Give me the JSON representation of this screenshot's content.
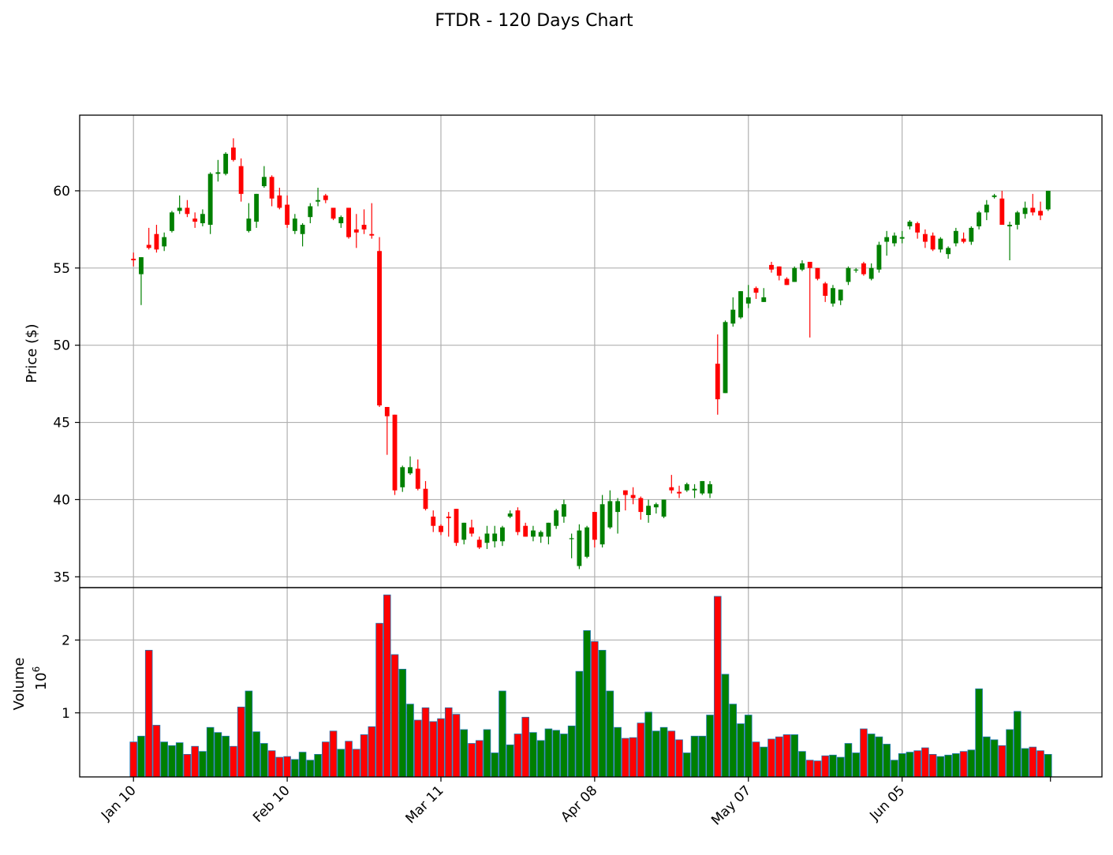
{
  "chart_data": {
    "type": "candlestick",
    "title": "FTDR - 120 Days Chart",
    "price_panel": {
      "ylabel": "Price ($)",
      "ylim": [
        34.3,
        64.9
      ],
      "yticks": [
        35,
        40,
        45,
        50,
        55,
        60
      ]
    },
    "volume_panel": {
      "ylabel": "Volume",
      "multiplier_label": "10",
      "multiplier_exponent": "6",
      "ylim": [
        0.12,
        2.72
      ],
      "yticks": [
        1,
        2
      ]
    },
    "x_ticks": [
      {
        "label": "Jan 10",
        "index": 0
      },
      {
        "label": "Feb 10",
        "index": 20
      },
      {
        "label": "Mar 11",
        "index": 40
      },
      {
        "label": "Apr 08",
        "index": 60
      },
      {
        "label": "May 07",
        "index": 80
      },
      {
        "label": "Jun 05",
        "index": 100
      }
    ],
    "x_range": [
      -7,
      126
    ],
    "grid": true,
    "colors": {
      "up": "#008000",
      "down": "#ff0000",
      "volume_edge": "#1f77b4"
    },
    "candles": [
      [
        55.6,
        56.0,
        55.1,
        55.5,
        0.6
      ],
      [
        54.6,
        55.7,
        52.6,
        55.7,
        0.68
      ],
      [
        56.5,
        57.6,
        56.2,
        56.3,
        1.86
      ],
      [
        57.2,
        57.8,
        56.0,
        56.2,
        0.83
      ],
      [
        56.4,
        57.3,
        56.1,
        57.0,
        0.6
      ],
      [
        57.4,
        58.7,
        57.3,
        58.6,
        0.55
      ],
      [
        58.7,
        59.7,
        58.5,
        58.9,
        0.59
      ],
      [
        58.9,
        59.4,
        58.3,
        58.5,
        0.43
      ],
      [
        58.2,
        58.6,
        57.6,
        58.0,
        0.54
      ],
      [
        57.9,
        58.8,
        57.7,
        58.5,
        0.47
      ],
      [
        57.8,
        61.2,
        57.2,
        61.1,
        0.8
      ],
      [
        61.1,
        62.0,
        60.6,
        61.2,
        0.73
      ],
      [
        61.1,
        62.5,
        61.0,
        62.4,
        0.68
      ],
      [
        62.8,
        63.4,
        61.9,
        62.0,
        0.54
      ],
      [
        61.6,
        62.1,
        59.3,
        59.8,
        1.08
      ],
      [
        57.4,
        59.2,
        57.3,
        58.2,
        1.3
      ],
      [
        58.0,
        59.8,
        57.6,
        59.8,
        0.74
      ],
      [
        60.3,
        61.6,
        60.2,
        60.9,
        0.58
      ],
      [
        60.9,
        61.0,
        59.0,
        59.5,
        0.48
      ],
      [
        59.7,
        60.2,
        58.8,
        58.9,
        0.39
      ],
      [
        59.1,
        59.7,
        57.6,
        57.8,
        0.4
      ],
      [
        57.4,
        58.5,
        57.2,
        58.2,
        0.36
      ],
      [
        57.2,
        57.9,
        56.4,
        57.8,
        0.46
      ],
      [
        58.3,
        59.2,
        57.9,
        59.0,
        0.35
      ],
      [
        59.3,
        60.2,
        59.0,
        59.4,
        0.43
      ],
      [
        59.7,
        59.8,
        59.2,
        59.4,
        0.6
      ],
      [
        58.9,
        58.9,
        58.1,
        58.2,
        0.75
      ],
      [
        57.9,
        58.4,
        57.6,
        58.3,
        0.5
      ],
      [
        58.9,
        58.9,
        56.9,
        57.0,
        0.61
      ],
      [
        57.5,
        58.5,
        56.3,
        57.3,
        0.5
      ],
      [
        57.8,
        58.8,
        57.2,
        57.5,
        0.7
      ],
      [
        57.2,
        59.2,
        56.9,
        57.1,
        0.81
      ],
      [
        56.1,
        57.0,
        46.0,
        46.1,
        2.23
      ],
      [
        46.0,
        46.0,
        42.9,
        45.4,
        2.62
      ],
      [
        45.5,
        45.5,
        40.3,
        40.6,
        1.8
      ],
      [
        40.8,
        42.2,
        40.5,
        42.1,
        1.6
      ],
      [
        41.7,
        42.8,
        41.6,
        42.1,
        1.12
      ],
      [
        42.0,
        42.6,
        40.6,
        40.7,
        0.9
      ],
      [
        40.7,
        41.2,
        39.3,
        39.4,
        1.07
      ],
      [
        38.9,
        39.3,
        37.9,
        38.3,
        0.88
      ],
      [
        38.3,
        38.4,
        37.7,
        37.9,
        0.92
      ],
      [
        38.9,
        39.2,
        37.6,
        38.8,
        1.07
      ],
      [
        39.4,
        39.4,
        37.0,
        37.2,
        0.98
      ],
      [
        37.4,
        38.5,
        37.1,
        38.5,
        0.77
      ],
      [
        38.2,
        38.7,
        37.6,
        37.8,
        0.58
      ],
      [
        37.4,
        37.6,
        36.8,
        36.9,
        0.62
      ],
      [
        37.2,
        38.3,
        36.8,
        37.8,
        0.77
      ],
      [
        37.3,
        38.3,
        36.9,
        37.8,
        0.45
      ],
      [
        37.3,
        38.3,
        37.0,
        38.2,
        1.3
      ],
      [
        38.9,
        39.3,
        38.8,
        39.1,
        0.56
      ],
      [
        39.3,
        39.5,
        37.7,
        37.9,
        0.71
      ],
      [
        38.3,
        38.5,
        37.6,
        37.6,
        0.94
      ],
      [
        37.6,
        38.3,
        37.3,
        38.0,
        0.73
      ],
      [
        37.6,
        38.0,
        37.2,
        37.9,
        0.62
      ],
      [
        37.6,
        38.5,
        37.1,
        38.5,
        0.78
      ],
      [
        38.3,
        39.4,
        38.1,
        39.3,
        0.76
      ],
      [
        38.9,
        40.0,
        38.5,
        39.7,
        0.71
      ],
      [
        37.5,
        37.8,
        36.2,
        37.5,
        0.82
      ],
      [
        35.7,
        38.4,
        35.5,
        38.0,
        1.57
      ],
      [
        36.3,
        38.3,
        36.2,
        38.2,
        2.13
      ],
      [
        39.2,
        39.2,
        36.9,
        37.4,
        1.98
      ],
      [
        37.1,
        40.3,
        36.9,
        39.7,
        1.86
      ],
      [
        38.2,
        40.6,
        38.1,
        39.9,
        1.3
      ],
      [
        39.2,
        40.1,
        37.8,
        39.9,
        0.8
      ],
      [
        40.6,
        40.6,
        39.3,
        40.3,
        0.65
      ],
      [
        40.3,
        40.8,
        39.7,
        40.1,
        0.66
      ],
      [
        40.1,
        40.2,
        38.7,
        39.2,
        0.86
      ],
      [
        39.0,
        40.0,
        38.5,
        39.6,
        1.01
      ],
      [
        39.5,
        39.8,
        39.1,
        39.7,
        0.75
      ],
      [
        38.9,
        40.0,
        38.8,
        40.0,
        0.8
      ],
      [
        40.8,
        41.6,
        40.4,
        40.6,
        0.75
      ],
      [
        40.5,
        40.9,
        40.1,
        40.4,
        0.63
      ],
      [
        40.6,
        41.1,
        40.5,
        41.0,
        0.45
      ],
      [
        40.6,
        41.0,
        40.1,
        40.7,
        0.68
      ],
      [
        40.4,
        41.2,
        40.3,
        41.2,
        0.68
      ],
      [
        40.4,
        41.2,
        40.1,
        41.0,
        0.97
      ],
      [
        48.8,
        50.7,
        45.5,
        46.5,
        2.6
      ],
      [
        46.9,
        51.6,
        46.9,
        51.5,
        1.53
      ],
      [
        51.4,
        53.1,
        51.2,
        52.3,
        1.12
      ],
      [
        51.8,
        53.5,
        51.7,
        53.5,
        0.85
      ],
      [
        52.7,
        53.9,
        52.4,
        53.1,
        0.97
      ],
      [
        53.7,
        53.8,
        53.0,
        53.4,
        0.6
      ],
      [
        52.8,
        53.7,
        52.8,
        53.1,
        0.53
      ],
      [
        55.2,
        55.4,
        54.7,
        54.9,
        0.64
      ],
      [
        55.1,
        55.1,
        54.2,
        54.5,
        0.67
      ],
      [
        54.3,
        54.4,
        53.9,
        53.9,
        0.7
      ],
      [
        54.1,
        55.1,
        54.1,
        55.0,
        0.7
      ],
      [
        54.9,
        55.5,
        54.8,
        55.3,
        0.47
      ],
      [
        55.4,
        55.4,
        50.5,
        55.0,
        0.35
      ],
      [
        55.0,
        55.0,
        54.2,
        54.3,
        0.34
      ],
      [
        54.0,
        54.1,
        52.8,
        53.2,
        0.41
      ],
      [
        52.7,
        53.9,
        52.5,
        53.7,
        0.42
      ],
      [
        52.9,
        53.6,
        52.6,
        53.6,
        0.39
      ],
      [
        54.1,
        55.1,
        53.9,
        55.0,
        0.58
      ],
      [
        54.9,
        55.0,
        54.7,
        54.9,
        0.45
      ],
      [
        55.3,
        55.4,
        54.5,
        54.6,
        0.78
      ],
      [
        54.3,
        55.3,
        54.2,
        55.0,
        0.71
      ],
      [
        54.9,
        56.7,
        54.7,
        56.5,
        0.67
      ],
      [
        56.7,
        57.4,
        55.8,
        57.0,
        0.57
      ],
      [
        56.6,
        57.3,
        56.4,
        57.1,
        0.35
      ],
      [
        56.9,
        57.4,
        56.6,
        57.0,
        0.44
      ],
      [
        57.7,
        58.1,
        57.5,
        58.0,
        0.46
      ],
      [
        57.9,
        58.0,
        56.9,
        57.3,
        0.48
      ],
      [
        57.2,
        57.5,
        56.3,
        56.7,
        0.52
      ],
      [
        57.1,
        57.3,
        56.1,
        56.2,
        0.43
      ],
      [
        56.2,
        57.0,
        56.0,
        56.9,
        0.4
      ],
      [
        55.9,
        56.4,
        55.6,
        56.3,
        0.42
      ],
      [
        56.6,
        57.6,
        56.4,
        57.4,
        0.44
      ],
      [
        56.9,
        57.3,
        56.6,
        56.7,
        0.47
      ],
      [
        56.7,
        57.7,
        56.5,
        57.6,
        0.49
      ],
      [
        57.7,
        58.7,
        57.5,
        58.6,
        1.33
      ],
      [
        58.6,
        59.4,
        58.1,
        59.1,
        0.67
      ],
      [
        59.6,
        59.8,
        59.5,
        59.7,
        0.63
      ],
      [
        59.5,
        60.0,
        57.8,
        57.8,
        0.55
      ],
      [
        57.7,
        58.0,
        55.5,
        57.8,
        0.77
      ],
      [
        57.8,
        58.7,
        57.5,
        58.6,
        1.02
      ],
      [
        58.5,
        59.3,
        58.2,
        58.9,
        0.51
      ],
      [
        58.9,
        59.8,
        58.4,
        58.6,
        0.53
      ],
      [
        58.7,
        59.3,
        58.1,
        58.4,
        0.48
      ],
      [
        58.8,
        60.0,
        58.7,
        60.0,
        0.43
      ]
    ]
  }
}
